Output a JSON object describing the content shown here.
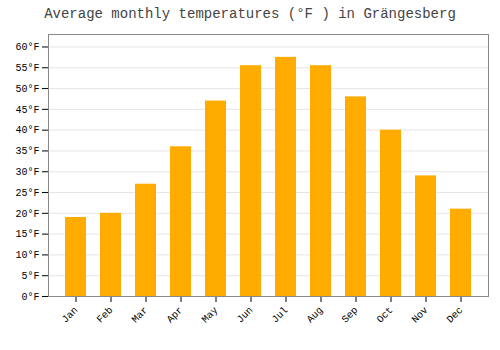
{
  "chart_data": {
    "type": "bar",
    "title": "Average monthly temperatures (°F ) in Grängesberg",
    "categories": [
      "Jan",
      "Feb",
      "Mar",
      "Apr",
      "May",
      "Jun",
      "Jul",
      "Aug",
      "Sep",
      "Oct",
      "Nov",
      "Dec"
    ],
    "values": [
      19,
      20,
      27,
      36,
      47,
      55.5,
      57.5,
      55.5,
      48,
      40,
      29,
      21
    ],
    "color": "#FFAB00",
    "ylim": [
      0,
      63
    ],
    "yticks": [
      {
        "value": 0,
        "label": "0°F"
      },
      {
        "value": 5,
        "label": "5°F"
      },
      {
        "value": 10,
        "label": "10°F"
      },
      {
        "value": 15,
        "label": "15°F"
      },
      {
        "value": 20,
        "label": "20°F"
      },
      {
        "value": 25,
        "label": "25°F"
      },
      {
        "value": 30,
        "label": "30°F"
      },
      {
        "value": 35,
        "label": "35°F"
      },
      {
        "value": 40,
        "label": "40°F"
      },
      {
        "value": 45,
        "label": "45°F"
      },
      {
        "value": 50,
        "label": "50°F"
      },
      {
        "value": 55,
        "label": "55°F"
      },
      {
        "value": 60,
        "label": "60°F"
      }
    ],
    "grid": true
  }
}
